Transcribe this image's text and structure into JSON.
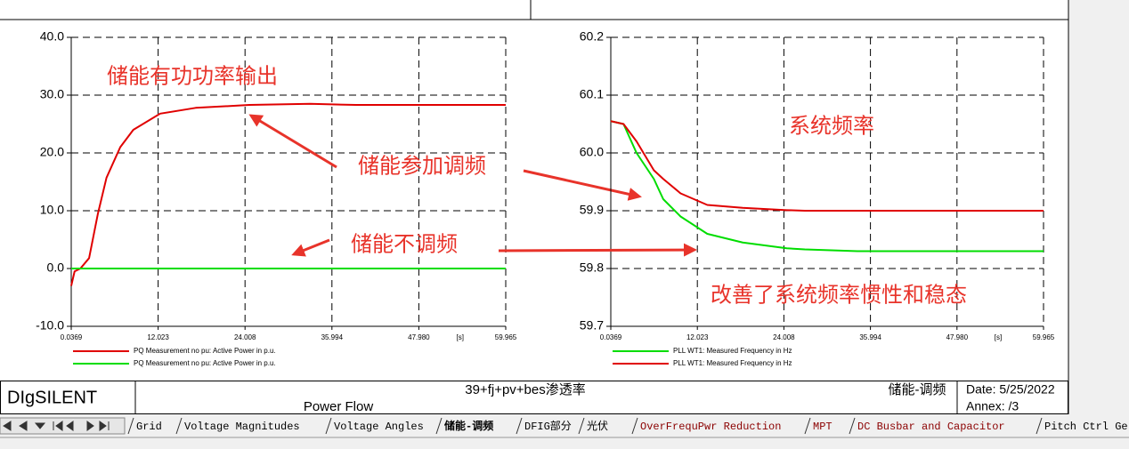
{
  "chart_data": [
    {
      "type": "line",
      "x": [
        0.0369,
        0.5,
        1.3,
        2.5,
        3.7,
        4.9,
        6.8,
        8.6,
        12.3,
        17.2,
        24.6,
        33,
        39.3,
        59.965
      ],
      "series": [
        {
          "name": "PQ Measurement no pu: Active Power in p.u.",
          "color": "#e00000",
          "values": [
            -3,
            -0.5,
            0,
            1.8,
            9.4,
            15.7,
            21,
            24,
            26.8,
            27.8,
            28.3,
            28.5,
            28.3,
            28.3
          ]
        },
        {
          "name": "PQ Measurement no pu: Active Power in p.u.",
          "color": "#00dd00",
          "values": [
            0,
            0,
            0,
            0,
            0,
            0,
            0,
            0,
            0,
            0,
            0,
            0,
            0,
            0
          ]
        }
      ],
      "xlim": [
        0.0369,
        59.965
      ],
      "xticks": [
        0.0369,
        12.023,
        24.008,
        35.994,
        {
          "value": 47.98,
          "label": "47.980"
        },
        59.965
      ],
      "xlabel": "[s]",
      "ylim": [
        -10,
        40
      ],
      "yticks": [
        {
          "value": -10,
          "label": "-10.0"
        },
        {
          "value": 0,
          "label": "0.0"
        },
        {
          "value": 10,
          "label": "10.0"
        },
        {
          "value": 20,
          "label": "20.0"
        },
        {
          "value": 30,
          "label": "30.0"
        },
        {
          "value": 40,
          "label": "40.0"
        }
      ],
      "grid": true,
      "annotations": [
        "储能有功功率输出",
        "储能参加调频",
        "储能不调频"
      ]
    },
    {
      "type": "line",
      "x": [
        0.0369,
        1.8,
        3.6,
        6.0,
        7.3,
        9.7,
        13.4,
        18.3,
        24.4,
        26.9,
        34.2,
        59.965
      ],
      "series": [
        {
          "name": "PLL WT1: Measured Frequency in Hz",
          "color": "#00dd00",
          "values": [
            60.055,
            60.05,
            60.0,
            59.955,
            59.92,
            59.89,
            59.86,
            59.845,
            59.835,
            59.833,
            59.83,
            59.83
          ]
        },
        {
          "name": "PLL WT1: Measured Frequency in Hz",
          "color": "#e00000",
          "values": [
            60.055,
            60.05,
            60.02,
            59.97,
            59.955,
            59.93,
            59.91,
            59.905,
            59.901,
            59.9,
            59.9,
            59.9
          ]
        }
      ],
      "xlim": [
        0.0369,
        59.965
      ],
      "xticks": [
        0.0369,
        12.023,
        24.008,
        35.994,
        {
          "value": 47.98,
          "label": "47.980"
        },
        59.965
      ],
      "xlabel": "[s]",
      "ylim": [
        59.7,
        60.2
      ],
      "yticks": [
        59.7,
        59.8,
        59.9,
        {
          "value": 60,
          "label": "60.0"
        },
        60.1,
        60.2
      ],
      "grid": true,
      "annotations": [
        "系统频率",
        "改善了系统频率惯性和稳态"
      ]
    }
  ],
  "footer": {
    "brand": "DIgSILENT",
    "study": "Power Flow",
    "project": "39+fj+pv+bes渗透率",
    "page": "储能-调频",
    "date": "Date: 5/25/2022",
    "annex": "Annex:   /3"
  },
  "tabs": [
    "Grid",
    "Voltage Magnitudes",
    "Voltage Angles",
    "储能-调频",
    "DFIG部分",
    "光伏",
    "OverFrequPwr Reduction",
    "MPT",
    "DC Busbar and Capacitor",
    "Pitch Ctrl Ge"
  ]
}
